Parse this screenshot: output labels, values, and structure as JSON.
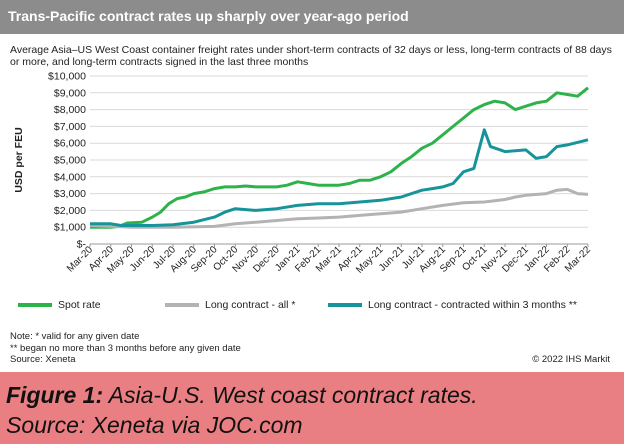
{
  "header": {
    "title": "Trans-Pacific contract rates up sharply over year-ago period"
  },
  "subtitle": "Average Asia–US West Coast container freight rates under short-term contracts of 32 days or less, long-term contracts of 88 days or more, and long-term contracts signed in the last three months",
  "notes": [
    "Note: * valid for any given date",
    "** began no more than 3 months before any given date",
    "Source: Xeneta"
  ],
  "copyright": "© 2022 IHS Markit",
  "caption": {
    "label": "Figure 1:",
    "line1": "Asia-U.S. West coast contract rates.",
    "line2": "Source: Xeneta via JOC.com"
  },
  "chart_data": {
    "type": "line",
    "ylabel": "USD per FEU",
    "ylim": [
      0,
      10000
    ],
    "y_ticks": [
      0,
      1000,
      2000,
      3000,
      4000,
      5000,
      6000,
      7000,
      8000,
      9000,
      10000
    ],
    "y_tick_labels": [
      "$-",
      "$1,000",
      "$2,000",
      "$3,000",
      "$4,000",
      "$5,000",
      "$6,000",
      "$7,000",
      "$8,000",
      "$9,000",
      "$10,000"
    ],
    "x_tick_labels": [
      "Mar-20",
      "Apr-20",
      "May-20",
      "Jun-20",
      "Jul-20",
      "Aug-20",
      "Sep-20",
      "Oct-20",
      "Nov-20",
      "Dec-20",
      "Jan-21",
      "Feb-21",
      "Mar-21",
      "Apr-21",
      "May-21",
      "Jun-21",
      "Jul-21",
      "Aug-21",
      "Sep-21",
      "Oct-21",
      "Nov-21",
      "Dec-21",
      "Jan-22",
      "Feb-22",
      "Mar-22"
    ],
    "grid": true,
    "legend_position": "bottom",
    "series": [
      {
        "name": "Spot rate",
        "color": "#2db34a",
        "points": [
          [
            0,
            1000
          ],
          [
            1,
            1000
          ],
          [
            1.4,
            1050
          ],
          [
            1.8,
            1250
          ],
          [
            2.5,
            1300
          ],
          [
            3,
            1600
          ],
          [
            3.4,
            1900
          ],
          [
            3.8,
            2400
          ],
          [
            4.2,
            2700
          ],
          [
            4.6,
            2800
          ],
          [
            5,
            3000
          ],
          [
            5.5,
            3100
          ],
          [
            6,
            3300
          ],
          [
            6.5,
            3400
          ],
          [
            7,
            3400
          ],
          [
            7.5,
            3450
          ],
          [
            8,
            3400
          ],
          [
            9,
            3400
          ],
          [
            9.5,
            3500
          ],
          [
            10,
            3700
          ],
          [
            10.5,
            3600
          ],
          [
            11,
            3500
          ],
          [
            12,
            3500
          ],
          [
            12.5,
            3600
          ],
          [
            13,
            3800
          ],
          [
            13.5,
            3800
          ],
          [
            14,
            4000
          ],
          [
            14.5,
            4300
          ],
          [
            15,
            4800
          ],
          [
            15.5,
            5200
          ],
          [
            16,
            5700
          ],
          [
            16.5,
            6000
          ],
          [
            17,
            6500
          ],
          [
            17.5,
            7000
          ],
          [
            18,
            7500
          ],
          [
            18.5,
            8000
          ],
          [
            19,
            8300
          ],
          [
            19.5,
            8500
          ],
          [
            20,
            8400
          ],
          [
            20.5,
            8000
          ],
          [
            21,
            8200
          ],
          [
            21.5,
            8400
          ],
          [
            22,
            8500
          ],
          [
            22.5,
            9000
          ],
          [
            23,
            8900
          ],
          [
            23.5,
            8800
          ],
          [
            24,
            9300
          ]
        ]
      },
      {
        "name": "Long contract - all *",
        "color": "#b3b3b3",
        "points": [
          [
            0,
            1100
          ],
          [
            2,
            1000
          ],
          [
            4,
            1000
          ],
          [
            6,
            1050
          ],
          [
            7,
            1200
          ],
          [
            8,
            1300
          ],
          [
            9,
            1400
          ],
          [
            10,
            1500
          ],
          [
            11,
            1550
          ],
          [
            12,
            1600
          ],
          [
            13,
            1700
          ],
          [
            14,
            1800
          ],
          [
            15,
            1900
          ],
          [
            16,
            2100
          ],
          [
            17,
            2300
          ],
          [
            18,
            2450
          ],
          [
            19,
            2500
          ],
          [
            20,
            2650
          ],
          [
            20.5,
            2800
          ],
          [
            21,
            2900
          ],
          [
            22,
            3000
          ],
          [
            22.5,
            3200
          ],
          [
            23,
            3250
          ],
          [
            23.5,
            3000
          ],
          [
            24,
            2950
          ]
        ]
      },
      {
        "name": "Long contract - contracted within 3 months **",
        "color": "#17949a",
        "points": [
          [
            0,
            1200
          ],
          [
            1,
            1200
          ],
          [
            1.5,
            1100
          ],
          [
            3,
            1100
          ],
          [
            4,
            1150
          ],
          [
            5,
            1300
          ],
          [
            6,
            1600
          ],
          [
            6.5,
            1900
          ],
          [
            7,
            2100
          ],
          [
            8,
            2000
          ],
          [
            9,
            2100
          ],
          [
            10,
            2300
          ],
          [
            11,
            2400
          ],
          [
            12,
            2400
          ],
          [
            13,
            2500
          ],
          [
            14,
            2600
          ],
          [
            15,
            2800
          ],
          [
            15.5,
            3000
          ],
          [
            16,
            3200
          ],
          [
            16.5,
            3300
          ],
          [
            17,
            3400
          ],
          [
            17.5,
            3600
          ],
          [
            18,
            4300
          ],
          [
            18.5,
            4500
          ],
          [
            19,
            6800
          ],
          [
            19.3,
            5800
          ],
          [
            20,
            5500
          ],
          [
            21,
            5600
          ],
          [
            21.5,
            5100
          ],
          [
            22,
            5200
          ],
          [
            22.5,
            5800
          ],
          [
            23,
            5900
          ],
          [
            24,
            6200
          ]
        ]
      }
    ]
  }
}
